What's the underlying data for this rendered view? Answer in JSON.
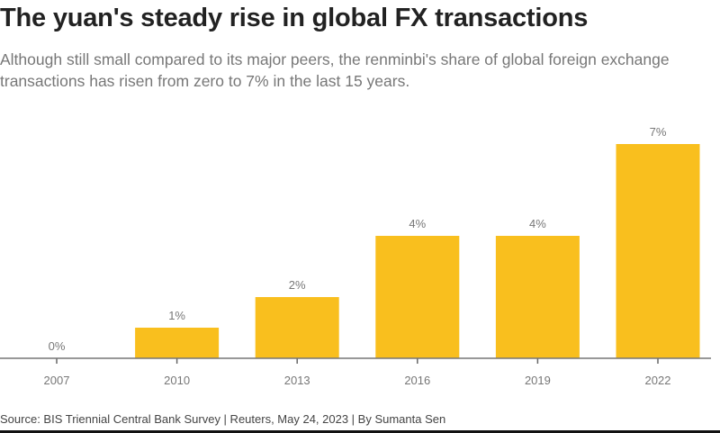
{
  "chart_data": {
    "type": "bar",
    "title": "The yuan's steady rise in global FX transactions",
    "subtitle": "Although still small compared to its major peers, the renminbi's share of global foreign exchange transactions has risen from zero to 7% in the last 15 years.",
    "categories": [
      "2007",
      "2010",
      "2013",
      "2016",
      "2019",
      "2022"
    ],
    "values": [
      0,
      1,
      2,
      4,
      4,
      7
    ],
    "data_labels": [
      "0%",
      "1%",
      "2%",
      "4%",
      "4%",
      "7%"
    ],
    "ylim": [
      0,
      7.3
    ],
    "grid": false,
    "bar_color": "#F9BF1E",
    "source": "Source: BIS Triennial Central Bank Survey | Reuters, May 24, 2023 | By Sumanta Sen"
  }
}
